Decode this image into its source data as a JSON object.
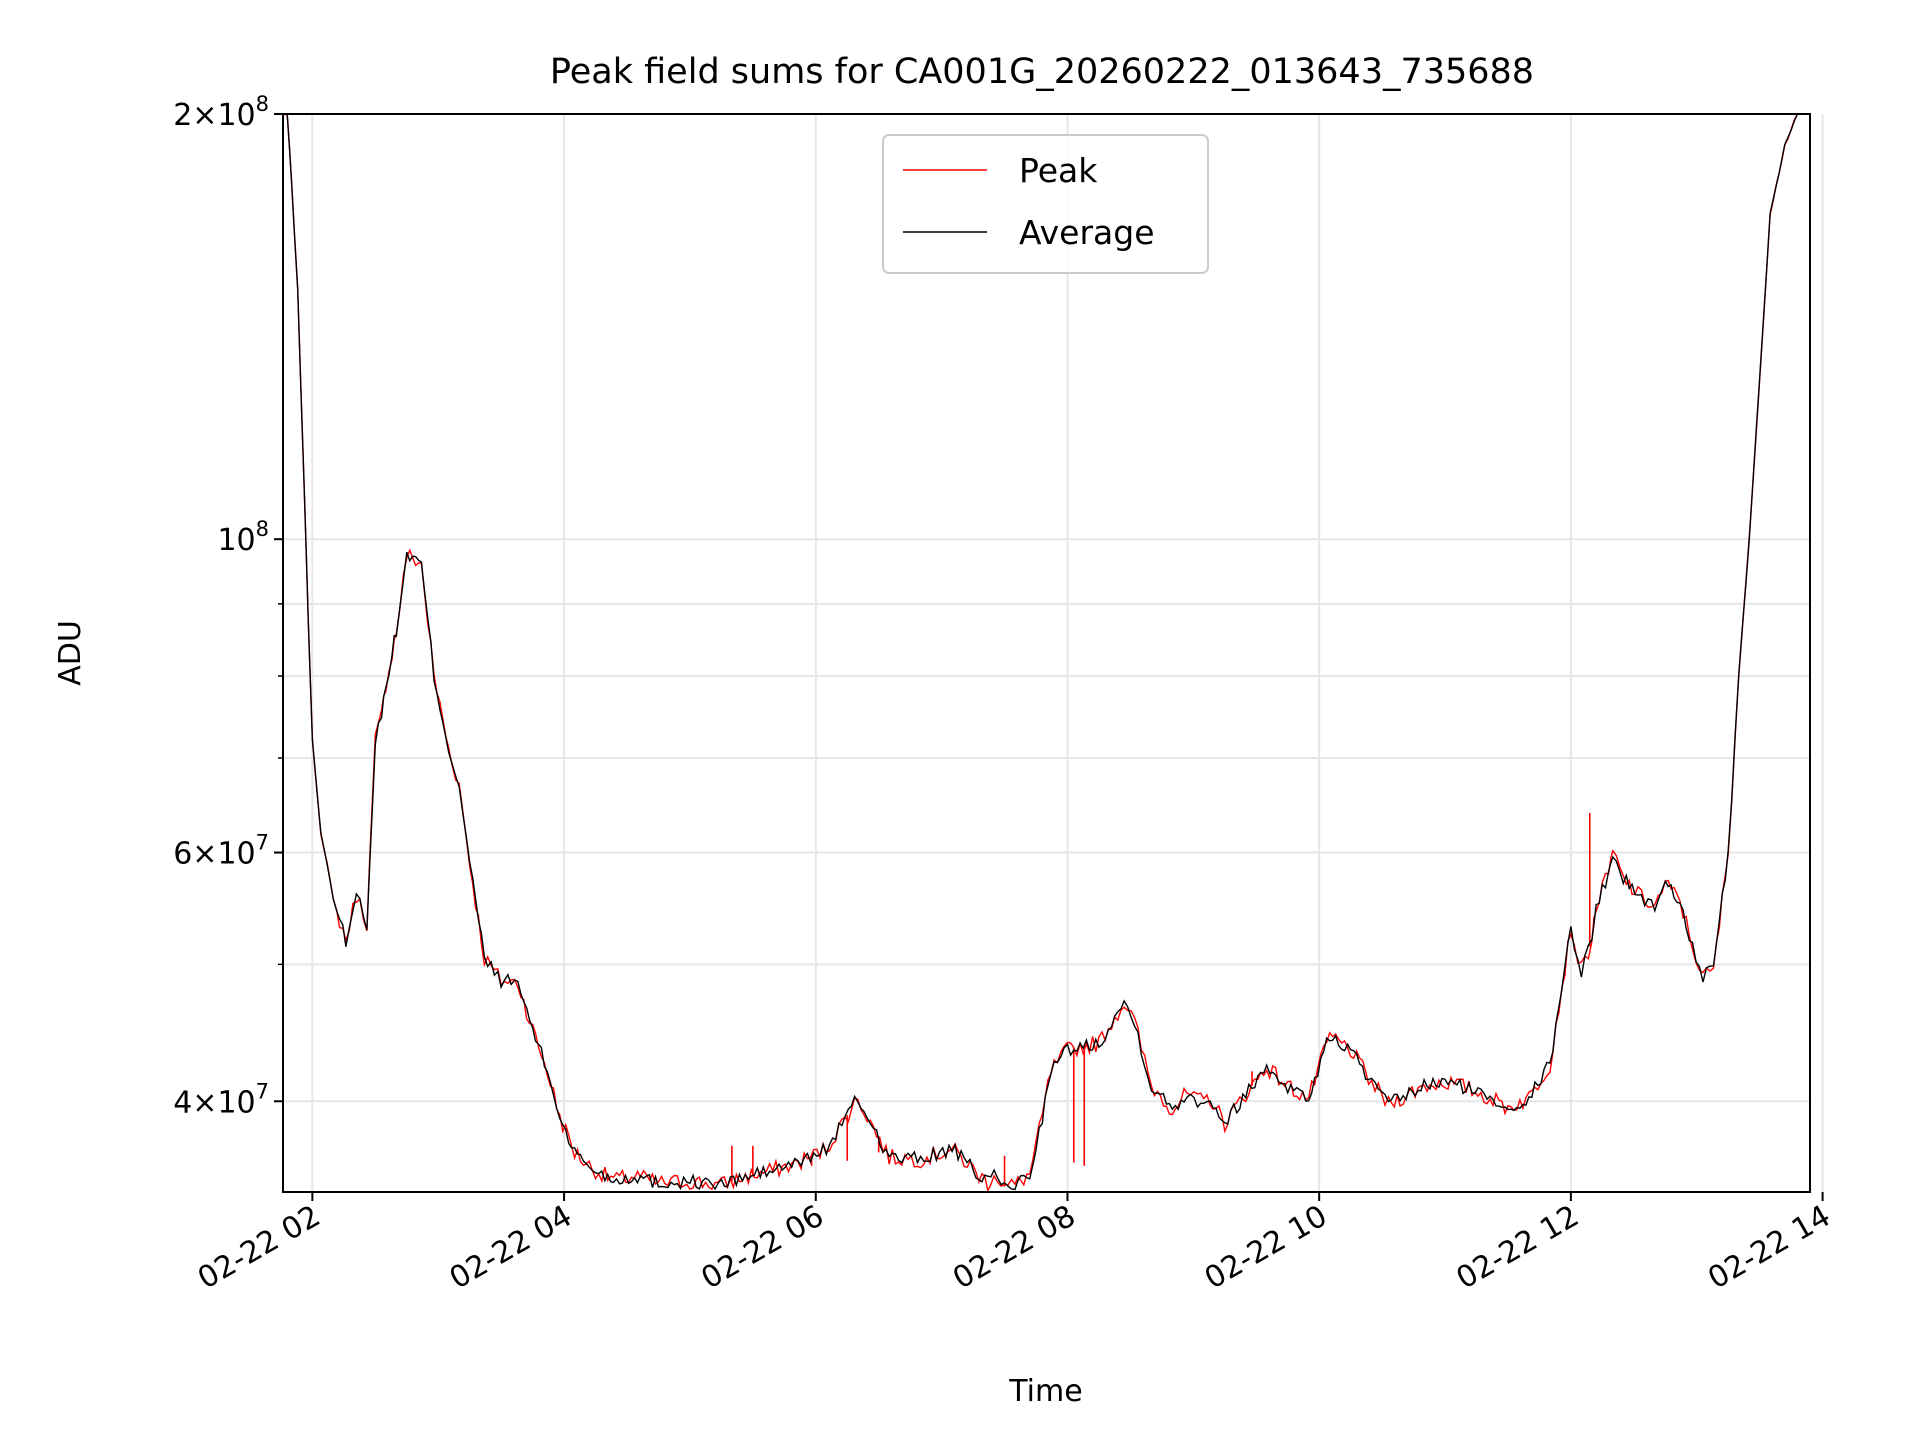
{
  "chart_data": {
    "type": "line",
    "title": "Peak field sums for CA001G_20260222_013643_735688",
    "xlabel": "Time",
    "ylabel": "ADU",
    "yscale": "log",
    "ylim": [
      34500000,
      200000000
    ],
    "xlim": [
      "02-22 01:46",
      "02-22 13:54"
    ],
    "grid": true,
    "legend": "upper center",
    "x_ticks": [
      "02-22 02",
      "02-22 04",
      "02-22 06",
      "02-22 08",
      "02-22 10",
      "02-22 12",
      "02-22 14"
    ],
    "y_ticks": [
      {
        "value": 40000000,
        "base": "4",
        "exp": "7"
      },
      {
        "value": 60000000,
        "base": "6",
        "exp": "7"
      },
      {
        "value": 100000000,
        "base": "",
        "exp": "8"
      },
      {
        "value": 200000000,
        "base": "2",
        "exp": "8"
      }
    ],
    "y_minor_ticks": [
      50000000,
      70000000,
      80000000,
      90000000
    ],
    "series": [
      {
        "name": "Peak",
        "color": "#ff0000"
      },
      {
        "name": "Average",
        "color": "#000000"
      }
    ],
    "average": {
      "x": [
        "02-22 01:46",
        "02-22 01:48",
        "02-22 01:50",
        "02-22 01:53",
        "02-22 01:56",
        "02-22 01:58",
        "02-22 02:00",
        "02-22 02:04",
        "02-22 02:07",
        "02-22 02:10",
        "02-22 02:16",
        "02-22 02:21",
        "02-22 02:26",
        "02-22 02:30",
        "02-22 02:33",
        "02-22 02:35",
        "02-22 02:38",
        "02-22 02:40",
        "02-22 02:45",
        "02-22 02:52",
        "02-22 02:58",
        "02-22 03:05",
        "02-22 03:10",
        "02-22 03:15",
        "02-22 03:22",
        "02-22 03:30",
        "02-22 03:38",
        "02-22 03:45",
        "02-22 03:52",
        "02-22 03:58",
        "02-22 04:05",
        "02-22 04:12",
        "02-22 04:18",
        "02-22 04:25",
        "02-22 04:35",
        "02-22 04:45",
        "02-22 05:00",
        "02-22 05:15",
        "02-22 05:25",
        "02-22 05:35",
        "02-22 05:50",
        "02-22 06:05",
        "02-22 06:20",
        "02-22 06:35",
        "02-22 06:50",
        "02-22 07:05",
        "02-22 07:15",
        "02-22 07:22",
        "02-22 07:25",
        "02-22 07:30",
        "02-22 07:35",
        "02-22 07:42",
        "02-22 07:48",
        "02-22 07:52",
        "02-22 08:00",
        "02-22 08:15",
        "02-22 08:27",
        "02-22 08:32",
        "02-22 08:40",
        "02-22 08:50",
        "02-22 08:57",
        "02-22 09:02",
        "02-22 09:08",
        "02-22 09:15",
        "02-22 09:25",
        "02-22 09:35",
        "02-22 09:45",
        "02-22 09:55",
        "02-22 10:05",
        "02-22 10:15",
        "02-22 10:25",
        "02-22 10:33",
        "02-22 10:40",
        "02-22 10:50",
        "02-22 11:00",
        "02-22 11:10",
        "02-22 11:20",
        "02-22 11:30",
        "02-22 11:40",
        "02-22 11:50",
        "02-22 12:00",
        "02-22 12:05",
        "02-22 12:10",
        "02-22 12:12",
        "02-22 12:18",
        "02-22 12:20",
        "02-22 12:25",
        "02-22 12:32",
        "02-22 12:40",
        "02-22 12:45",
        "02-22 12:52",
        "02-22 12:58",
        "02-22 13:03",
        "02-22 13:08",
        "02-22 13:15",
        "02-22 13:20",
        "02-22 13:25",
        "02-22 13:30",
        "02-22 13:35",
        "02-22 13:42",
        "02-22 13:48",
        "02-22 13:52"
      ],
      "y": [
        200000000,
        200000000,
        180000000,
        150000000,
        110000000,
        88000000,
        72000000,
        62000000,
        59000000,
        55500000,
        52000000,
        56000000,
        53500000,
        72000000,
        75000000,
        79000000,
        83000000,
        86000000,
        97500000,
        96000000,
        80000000,
        71000000,
        67000000,
        59000000,
        50500000,
        48700000,
        48500000,
        45000000,
        42000000,
        39000000,
        36800000,
        36000000,
        35500000,
        35200000,
        35400000,
        35000000,
        35100000,
        34900000,
        35300000,
        35600000,
        36100000,
        37000000,
        40200000,
        36500000,
        36400000,
        37000000,
        35800000,
        35000000,
        35600000,
        34800000,
        34900000,
        35500000,
        39000000,
        42000000,
        43500000,
        44000000,
        47000000,
        45500000,
        41000000,
        39500000,
        40500000,
        40000000,
        40200000,
        38600000,
        40500000,
        42300000,
        41000000,
        40200000,
        44500000,
        43500000,
        41200000,
        39800000,
        40300000,
        41000000,
        41300000,
        40900000,
        40300000,
        39600000,
        40200000,
        42500000,
        53000000,
        49500000,
        52000000,
        55000000,
        58000000,
        60000000,
        57500000,
        56000000,
        55000000,
        57000000,
        55500000,
        51500000,
        49000000,
        49500000,
        60000000,
        80000000,
        100000000,
        130000000,
        170000000,
        190000000,
        200000000,
        200000000
      ]
    },
    "peak_spikes": [
      {
        "x": "02-22 05:20",
        "y": 37200000
      },
      {
        "x": "02-22 05:30",
        "y": 37200000
      },
      {
        "x": "02-22 05:58",
        "y": 36000000
      },
      {
        "x": "02-22 06:15",
        "y": 36300000
      },
      {
        "x": "02-22 06:30",
        "y": 36800000
      },
      {
        "x": "02-22 07:30",
        "y": 36600000
      },
      {
        "x": "02-22 08:03",
        "y": 36200000
      },
      {
        "x": "02-22 08:08",
        "y": 36000000
      },
      {
        "x": "02-22 09:28",
        "y": 42000000
      },
      {
        "x": "02-22 12:09",
        "y": 64000000
      },
      {
        "x": "02-22 12:11",
        "y": 54000000
      }
    ]
  }
}
